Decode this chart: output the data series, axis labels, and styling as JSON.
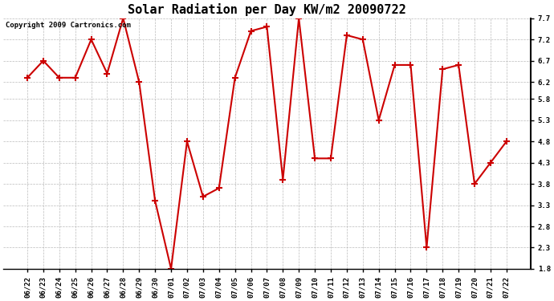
{
  "title": "Solar Radiation per Day KW/m2 20090722",
  "copyright_text": "Copyright 2009 Cartronics.com",
  "dates": [
    "06/22",
    "06/23",
    "06/24",
    "06/25",
    "06/26",
    "06/27",
    "06/28",
    "06/29",
    "06/30",
    "07/01",
    "07/02",
    "07/03",
    "07/04",
    "07/05",
    "07/06",
    "07/07",
    "07/08",
    "07/09",
    "07/10",
    "07/11",
    "07/12",
    "07/13",
    "07/14",
    "07/15",
    "07/16",
    "07/17",
    "07/18",
    "07/19",
    "07/20",
    "07/21",
    "07/22"
  ],
  "values": [
    6.3,
    6.7,
    6.3,
    6.3,
    7.2,
    6.4,
    7.7,
    6.2,
    3.4,
    1.8,
    4.8,
    3.5,
    3.7,
    6.3,
    7.4,
    7.5,
    3.9,
    7.7,
    4.4,
    4.4,
    7.3,
    7.2,
    5.3,
    6.6,
    6.6,
    2.3,
    6.5,
    6.6,
    3.8,
    4.3,
    4.8
  ],
  "line_color": "#cc0000",
  "marker": "+",
  "marker_size": 6,
  "marker_linewidth": 1.5,
  "line_width": 1.5,
  "ylim": [
    1.8,
    7.7
  ],
  "yticks": [
    1.8,
    2.3,
    2.8,
    3.3,
    3.8,
    4.3,
    4.8,
    5.3,
    5.8,
    6.2,
    6.7,
    7.2,
    7.7
  ],
  "background_color": "#ffffff",
  "plot_bg_color": "#ffffff",
  "grid_color": "#bbbbbb",
  "title_fontsize": 11,
  "tick_fontsize": 6.5,
  "copyright_fontsize": 6.5
}
